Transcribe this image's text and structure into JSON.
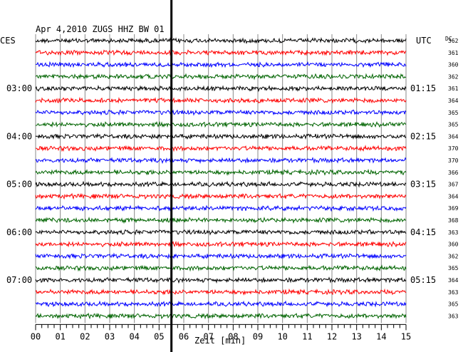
{
  "title": "Apr 4,2010   ZUGS HHZ BW 01",
  "left_tz": "CES",
  "right_tz": "UTC",
  "dc_header": "DC",
  "xlabel": "Zeit [min]",
  "chart_data": {
    "type": "line",
    "description_type": "helicorder",
    "xlim": [
      0,
      15
    ],
    "x_ticks": [
      "00",
      "01",
      "02",
      "03",
      "04",
      "05",
      "06",
      "07",
      "08",
      "09",
      "10",
      "11",
      "12",
      "13",
      "14",
      "15"
    ],
    "trace_colors": [
      "#000000",
      "#ff0000",
      "#0000ff",
      "#006400"
    ],
    "traces": [
      {
        "dc": "362"
      },
      {
        "dc": "361"
      },
      {
        "dc": "360"
      },
      {
        "dc": "362"
      },
      {
        "dc": "361"
      },
      {
        "dc": "364"
      },
      {
        "dc": "365"
      },
      {
        "dc": "365"
      },
      {
        "dc": "364"
      },
      {
        "dc": "370"
      },
      {
        "dc": "370"
      },
      {
        "dc": "366"
      },
      {
        "dc": "367"
      },
      {
        "dc": "364"
      },
      {
        "dc": "369"
      },
      {
        "dc": "368"
      },
      {
        "dc": "363"
      },
      {
        "dc": "360"
      },
      {
        "dc": "362"
      },
      {
        "dc": "365"
      },
      {
        "dc": "364"
      },
      {
        "dc": "363"
      },
      {
        "dc": "365"
      },
      {
        "dc": "363"
      }
    ],
    "hour_labels": [
      {
        "trace": 4,
        "left": "03:00",
        "right": "01:15"
      },
      {
        "trace": 8,
        "left": "04:00",
        "right": "02:15"
      },
      {
        "trace": 12,
        "left": "05:00",
        "right": "03:15"
      },
      {
        "trace": 16,
        "left": "06:00",
        "right": "04:15"
      },
      {
        "trace": 20,
        "left": "07:00",
        "right": "05:15"
      }
    ],
    "marker_minute": 5.5,
    "grid": true
  }
}
